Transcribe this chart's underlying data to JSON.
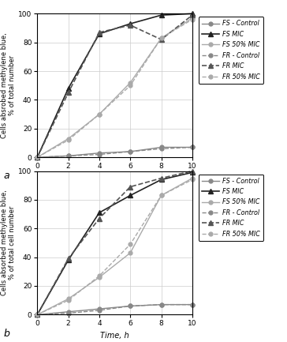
{
  "time": [
    0,
    2,
    4,
    6,
    8,
    10
  ],
  "panel_a": {
    "FS_Control": [
      0,
      1,
      3,
      4,
      7,
      7
    ],
    "FS_MIC": [
      0,
      48,
      86,
      93,
      99,
      100
    ],
    "FS_50MIC": [
      0,
      13,
      30,
      52,
      83,
      97
    ],
    "FR_Control": [
      0,
      1,
      2,
      4,
      6,
      7
    ],
    "FR_MIC": [
      0,
      45,
      87,
      92,
      82,
      99
    ],
    "FR_50MIC": [
      0,
      12,
      30,
      50,
      83,
      96
    ]
  },
  "panel_b": {
    "FS_Control": [
      0,
      2,
      4,
      6,
      7,
      7
    ],
    "FS_MIC": [
      0,
      38,
      71,
      83,
      94,
      99
    ],
    "FS_50MIC": [
      0,
      11,
      26,
      43,
      83,
      95
    ],
    "FR_Control": [
      0,
      1,
      3,
      6,
      7,
      7
    ],
    "FR_MIC": [
      0,
      39,
      67,
      89,
      95,
      100
    ],
    "FR_50MIC": [
      0,
      10,
      27,
      49,
      83,
      94
    ]
  },
  "ylabel_a": "Cells absrobed methylene blue,\n% of total number",
  "ylabel_b": "Cells absorbed methylene blue,\n% of total cell number",
  "xlabel": "Time, h",
  "legend_labels": [
    "FS - Control",
    "FS MIC",
    "FS 50% MIC",
    "FR - Control",
    "FR MIC",
    "FR 50% MIC"
  ],
  "panel_labels": [
    "a",
    "b"
  ],
  "line_styles": {
    "FS_Control": {
      "color": "#888888",
      "ls": "-",
      "marker": "o",
      "ms": 3.5,
      "lw": 1.0
    },
    "FS_MIC": {
      "color": "#222222",
      "ls": "-",
      "marker": "^",
      "ms": 4.5,
      "lw": 1.2
    },
    "FS_50MIC": {
      "color": "#aaaaaa",
      "ls": "-",
      "marker": "o",
      "ms": 3.5,
      "lw": 1.0
    },
    "FR_Control": {
      "color": "#888888",
      "ls": "--",
      "marker": "o",
      "ms": 3.5,
      "lw": 1.0
    },
    "FR_MIC": {
      "color": "#555555",
      "ls": "--",
      "marker": "^",
      "ms": 4.5,
      "lw": 1.2
    },
    "FR_50MIC": {
      "color": "#aaaaaa",
      "ls": "--",
      "marker": "o",
      "ms": 3.5,
      "lw": 1.0
    }
  },
  "ylim": [
    0,
    100
  ],
  "xlim": [
    0,
    10
  ],
  "yticks": [
    0,
    20,
    40,
    60,
    80,
    100
  ],
  "xticks": [
    0,
    2,
    4,
    6,
    8,
    10
  ]
}
